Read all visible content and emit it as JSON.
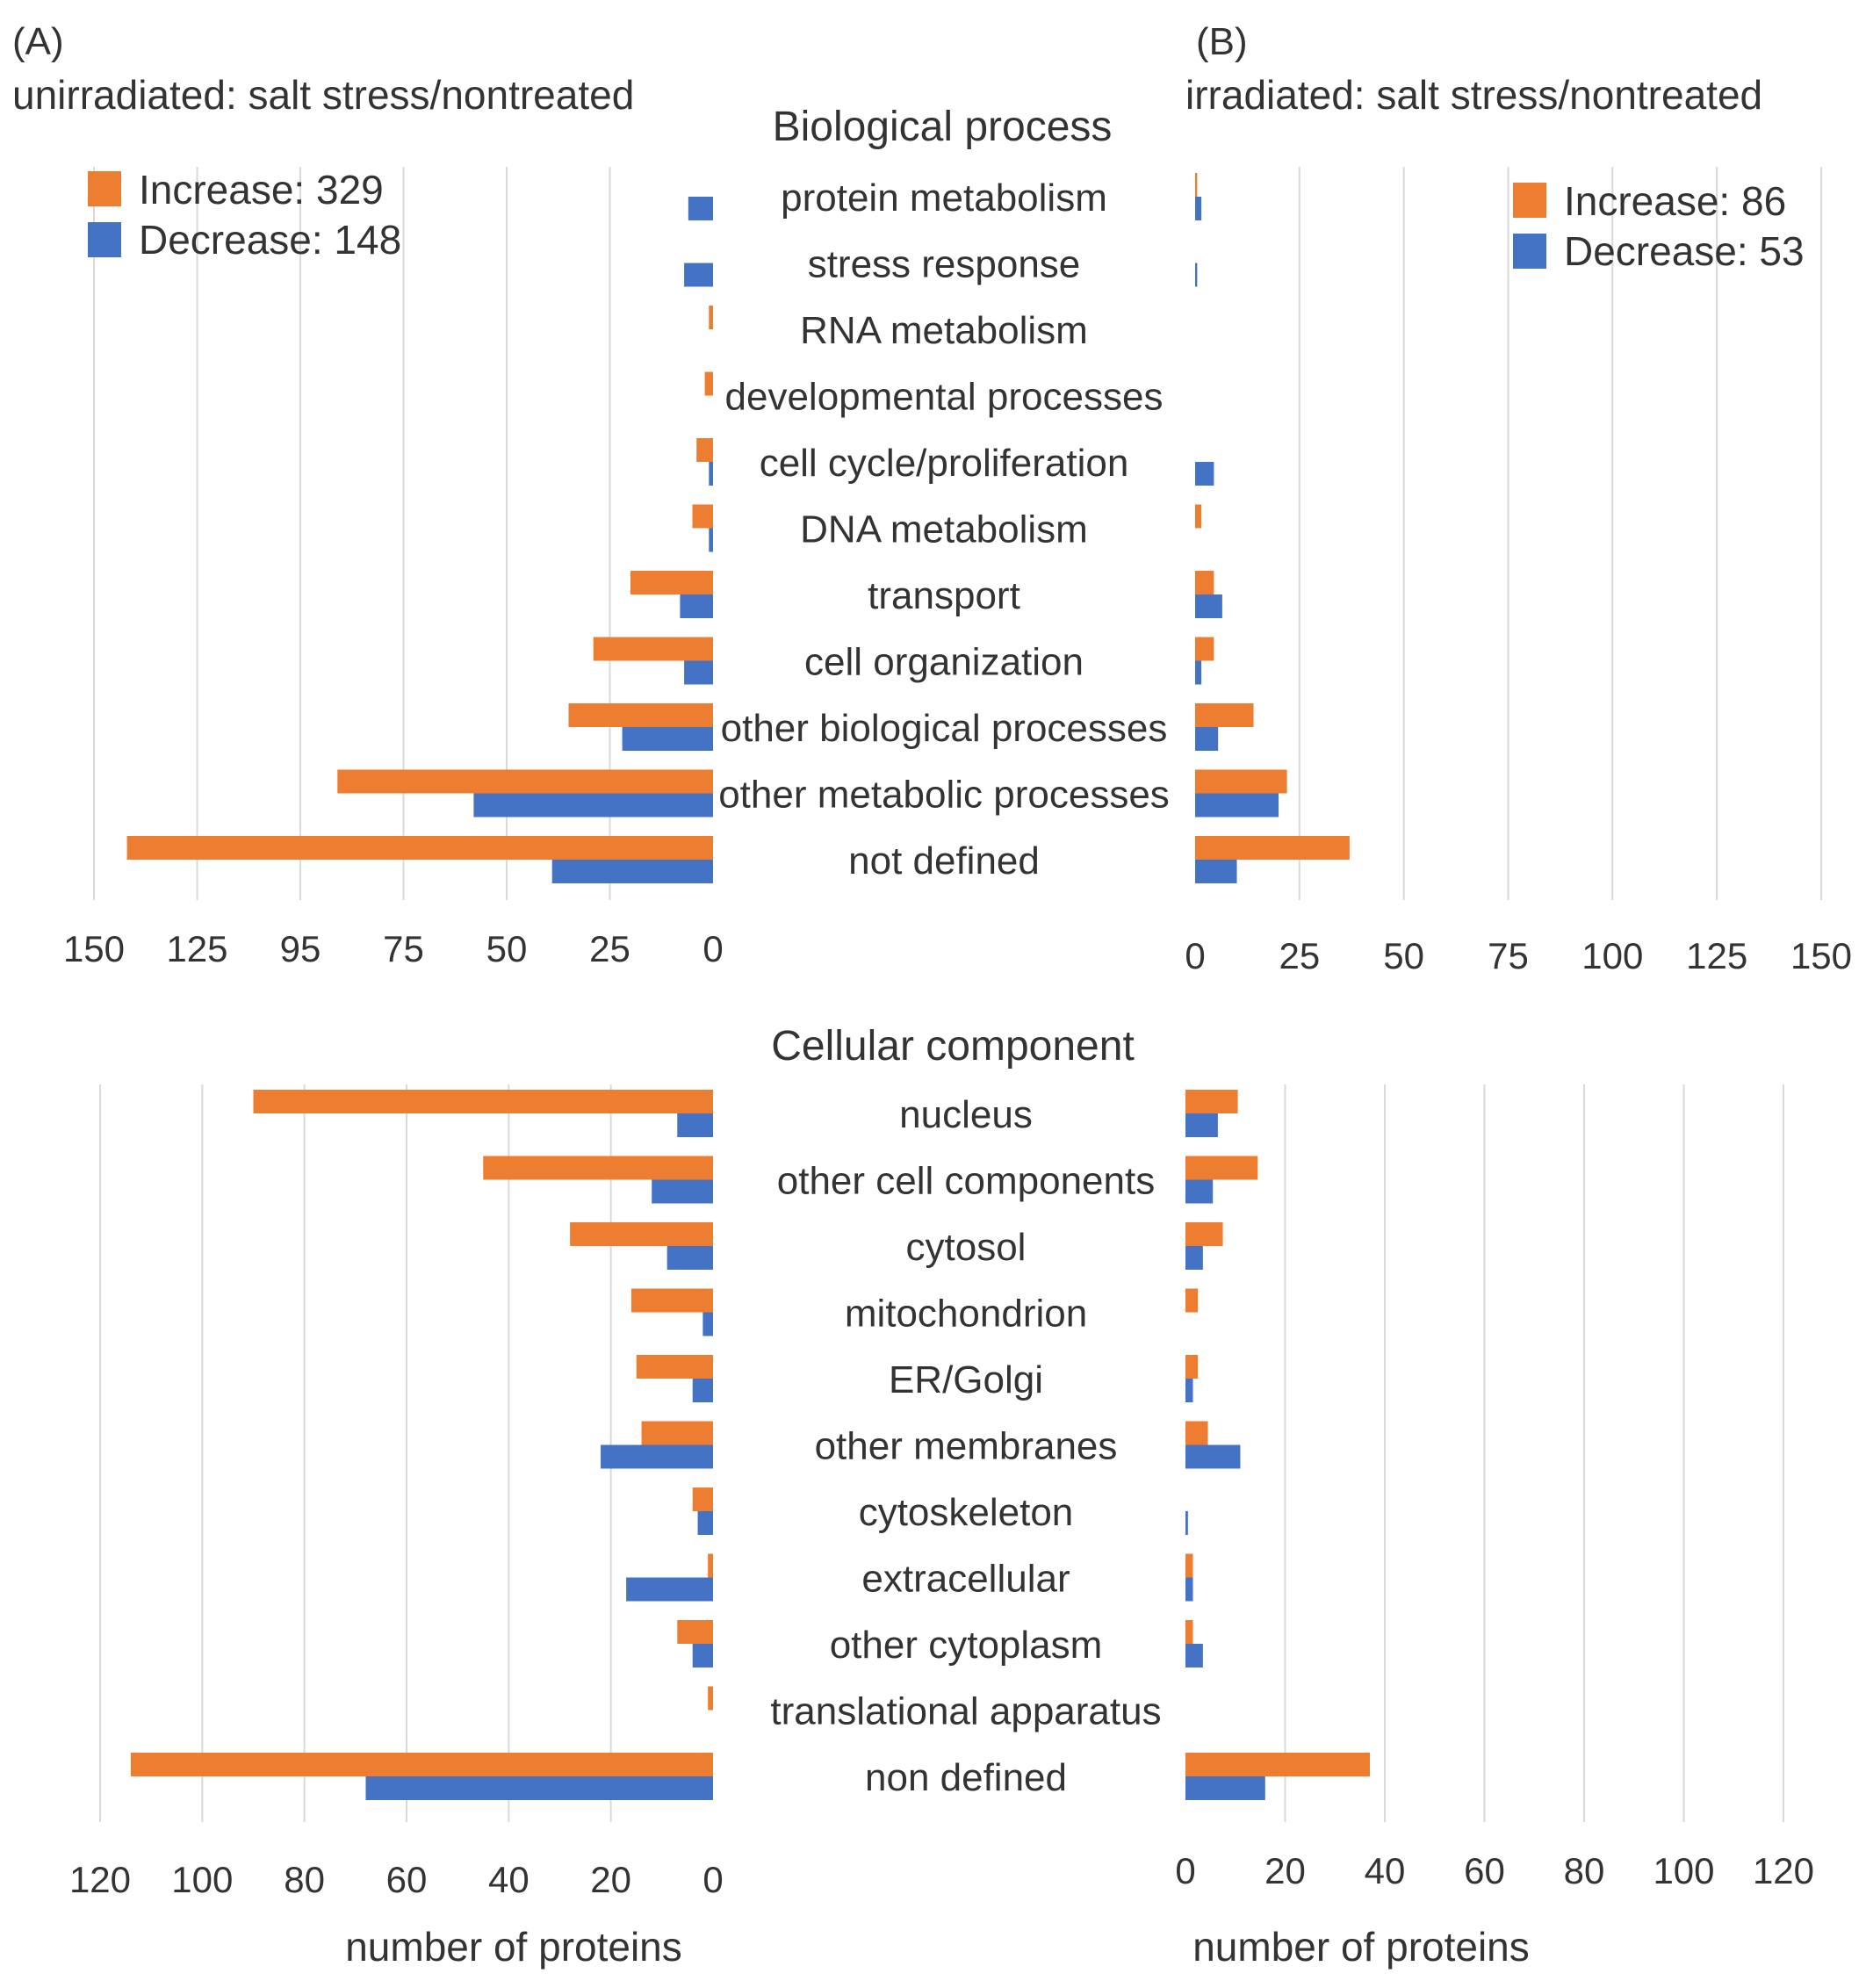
{
  "panel_labels": {
    "a": "(A)",
    "b": "(B)"
  },
  "panel_titles": {
    "a": "unirradiated: salt stress/nontreated",
    "b": "irradiated: salt stress/nontreated"
  },
  "section_titles": {
    "bio": "Biological process",
    "cell": "Cellular component"
  },
  "colors": {
    "increase": "#ED7D31",
    "decrease": "#4472C4",
    "grid": "#D9D9D9"
  },
  "chart_data": [
    {
      "id": "bio_unirradiated",
      "type": "bar",
      "orientation": "horizontal-reversed",
      "title": "Biological process",
      "panel": "(A) unirradiated: salt stress/nontreated",
      "xlabel": "",
      "xlim": [
        0,
        150
      ],
      "ticks": [
        0,
        25,
        50,
        75,
        95,
        125,
        150
      ],
      "tick_labels": [
        "0",
        "25",
        "50",
        "75",
        "95",
        "125",
        "150"
      ],
      "legend": {
        "position": "top-left",
        "increase": "Increase: 329",
        "decrease": "Decrease: 148"
      },
      "categories": [
        "protein metabolism",
        "stress response",
        "RNA metabolism",
        "developmental processes",
        "cell cycle/proliferation",
        "DNA metabolism",
        "transport",
        "cell organization",
        "other biological processes",
        "other metabolic processes",
        "not defined"
      ],
      "series": [
        {
          "name": "Increase",
          "values": [
            0,
            0,
            1,
            2,
            4,
            5,
            20,
            29,
            35,
            91,
            142
          ]
        },
        {
          "name": "Decrease",
          "values": [
            6,
            7,
            0,
            0,
            1,
            1,
            8,
            7,
            22,
            58,
            39
          ]
        }
      ]
    },
    {
      "id": "bio_irradiated",
      "type": "bar",
      "orientation": "horizontal",
      "title": "Biological process",
      "panel": "(B) irradiated: salt stress/nontreated",
      "xlabel": "",
      "xlim": [
        0,
        150
      ],
      "ticks": [
        0,
        25,
        50,
        75,
        100,
        125,
        150
      ],
      "tick_labels": [
        "0",
        "25",
        "50",
        "75",
        "100",
        "125",
        "150"
      ],
      "legend": {
        "position": "top-right",
        "increase": "Increase: 86",
        "decrease": "Decrease: 53"
      },
      "categories": [
        "protein metabolism",
        "stress response",
        "RNA metabolism",
        "developmental processes",
        "cell cycle/proliferation",
        "DNA metabolism",
        "transport",
        "cell organization",
        "other biological processes",
        "other metabolic processes",
        "not defined"
      ],
      "series": [
        {
          "name": "Increase",
          "values": [
            0.5,
            0,
            0,
            0,
            0,
            1.5,
            4.5,
            4.5,
            14,
            22,
            37
          ]
        },
        {
          "name": "Decrease",
          "values": [
            1.5,
            0.5,
            0,
            0,
            4.5,
            0,
            6.5,
            1.5,
            5.5,
            20,
            10
          ]
        }
      ]
    },
    {
      "id": "cell_unirradiated",
      "type": "bar",
      "orientation": "horizontal-reversed",
      "title": "Cellular component",
      "panel": "(A) unirradiated: salt stress/nontreated",
      "xlabel": "number of proteins",
      "xlim": [
        0,
        120
      ],
      "ticks": [
        0,
        20,
        40,
        60,
        80,
        100,
        120
      ],
      "tick_labels": [
        "0",
        "20",
        "40",
        "60",
        "80",
        "100",
        "120"
      ],
      "categories": [
        "nucleus",
        "other cell components",
        "cytosol",
        "mitochondrion",
        "ER/Golgi",
        "other membranes",
        "cytoskeleton",
        "extracellular",
        "other cytoplasm",
        "translational apparatus",
        "non defined"
      ],
      "series": [
        {
          "name": "Increase",
          "values": [
            90,
            45,
            28,
            16,
            15,
            14,
            4,
            1,
            7,
            1,
            114
          ]
        },
        {
          "name": "Decrease",
          "values": [
            7,
            12,
            9,
            2,
            4,
            22,
            3,
            17,
            4,
            0,
            68
          ]
        }
      ]
    },
    {
      "id": "cell_irradiated",
      "type": "bar",
      "orientation": "horizontal",
      "title": "Cellular component",
      "panel": "(B) irradiated: salt stress/nontreated",
      "xlabel": "number of proteins",
      "xlim": [
        0,
        120
      ],
      "ticks": [
        0,
        20,
        40,
        60,
        80,
        100,
        120
      ],
      "tick_labels": [
        "0",
        "20",
        "40",
        "60",
        "80",
        "100",
        "120"
      ],
      "categories": [
        "nucleus",
        "other cell components",
        "cytosol",
        "mitochondrion",
        "ER/Golgi",
        "other membranes",
        "cytoskeleton",
        "extracellular",
        "other cytoplasm",
        "translational apparatus",
        "non defined"
      ],
      "series": [
        {
          "name": "Increase",
          "values": [
            10.5,
            14.5,
            7.5,
            2.5,
            2.5,
            4.5,
            0,
            1.5,
            1.5,
            0,
            37
          ]
        },
        {
          "name": "Decrease",
          "values": [
            6.5,
            5.5,
            3.5,
            0,
            1.5,
            11,
            0.5,
            1.5,
            3.5,
            0,
            16
          ]
        }
      ]
    }
  ]
}
